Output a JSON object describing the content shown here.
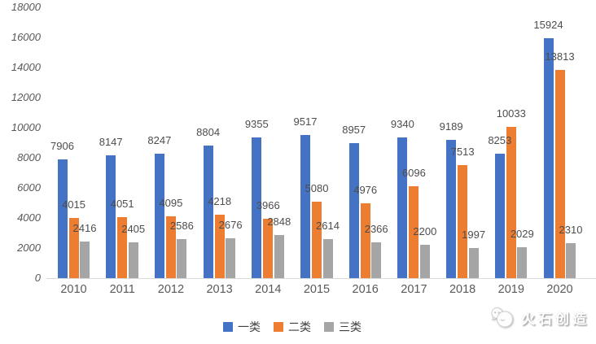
{
  "chart_data": {
    "type": "bar",
    "title": "",
    "xlabel": "",
    "ylabel": "",
    "categories": [
      "2010",
      "2011",
      "2012",
      "2013",
      "2014",
      "2015",
      "2016",
      "2017",
      "2018",
      "2019",
      "2020"
    ],
    "series": [
      {
        "name": "一类",
        "color": "#4472C4",
        "values": [
          7906,
          8147,
          8247,
          8804,
          9355,
          9517,
          8957,
          9340,
          9189,
          8253,
          15924
        ]
      },
      {
        "name": "二类",
        "color": "#ED7D31",
        "values": [
          4015,
          4051,
          4095,
          4218,
          3966,
          5080,
          4976,
          6096,
          7513,
          10033,
          13813
        ]
      },
      {
        "name": "三类",
        "color": "#A5A5A5",
        "values": [
          2416,
          2405,
          2586,
          2676,
          2848,
          2614,
          2366,
          2200,
          1997,
          2029,
          2310
        ]
      }
    ],
    "ylim": [
      0,
      18000
    ],
    "y_tick_step": 2000,
    "y_ticks": [
      "0",
      "2000",
      "4000",
      "6000",
      "8000",
      "10000",
      "12000",
      "14000",
      "16000",
      "18000"
    ],
    "grid": false,
    "legend_position": "bottom",
    "data_labels": true
  },
  "watermark": {
    "text": "火石创造",
    "icon": "flint-chat-logo-icon"
  },
  "colors": {
    "axis_line": "#d9d9d9",
    "tick_text": "#595959",
    "data_label_text": "#4d4d4d"
  }
}
